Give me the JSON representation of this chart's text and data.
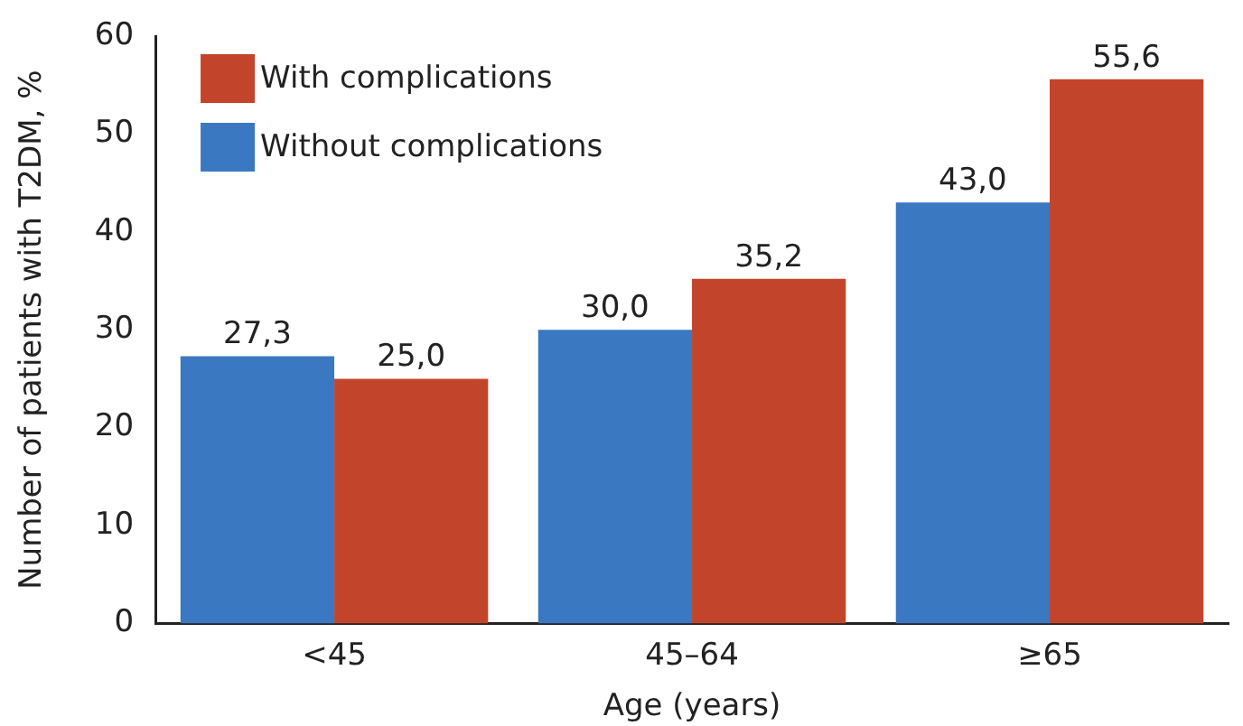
{
  "chart_data": {
    "type": "bar",
    "xlabel": "Age (years)",
    "ylabel": "Number of patients with T2DM, %",
    "categories": [
      "<45",
      "45–64",
      "≥65"
    ],
    "series": [
      {
        "name": "Without complications",
        "color": "#3b78c2",
        "values": [
          27.3,
          30.0,
          43.0
        ],
        "value_labels": [
          "27,3",
          "30,0",
          "43,0"
        ]
      },
      {
        "name": "With complications",
        "color": "#c2452b",
        "values": [
          25.0,
          35.2,
          55.6
        ],
        "value_labels": [
          "25,0",
          "35,2",
          "55,6"
        ]
      }
    ],
    "ylim": [
      0,
      60
    ],
    "yticks": [
      0,
      10,
      20,
      30,
      40,
      50,
      60
    ],
    "grid": false,
    "legend": "top left"
  }
}
